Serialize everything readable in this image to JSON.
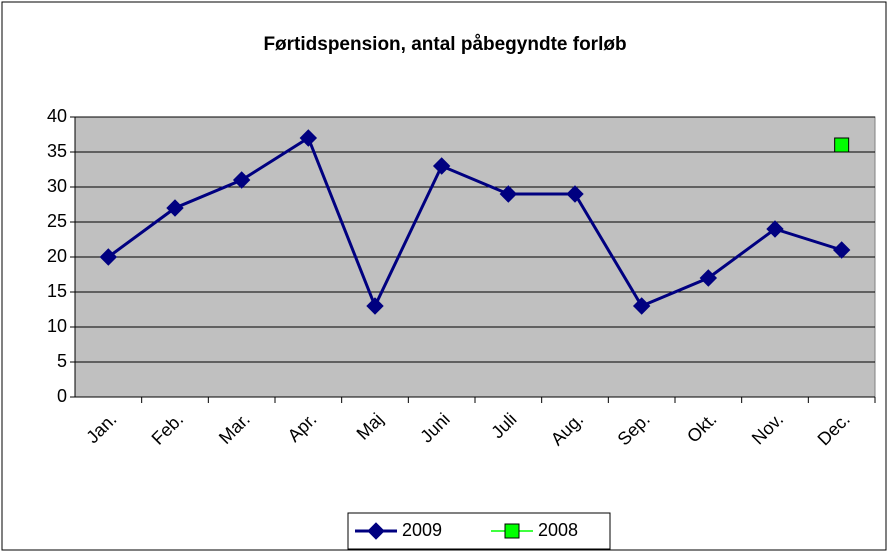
{
  "chart_data": {
    "type": "line",
    "title": "Førtidspension, antal påbegyndte forløb",
    "categories": [
      "Jan.",
      "Feb.",
      "Mar.",
      "Apr.",
      "Maj",
      "Juni",
      "Juli",
      "Aug.",
      "Sep.",
      "Okt.",
      "Nov.",
      "Dec."
    ],
    "series": [
      {
        "name": "2009",
        "color": "#000080",
        "marker": "diamond",
        "values": [
          20,
          27,
          31,
          37,
          13,
          33,
          29,
          29,
          13,
          17,
          24,
          21
        ]
      },
      {
        "name": "2008",
        "color": "#00ff00",
        "marker": "square",
        "values": [
          null,
          null,
          null,
          null,
          null,
          null,
          null,
          null,
          null,
          null,
          null,
          36
        ]
      }
    ],
    "ylim": [
      0,
      40
    ],
    "yticks": [
      0,
      5,
      10,
      15,
      20,
      25,
      30,
      35,
      40
    ],
    "grid": true,
    "legend": "bottom"
  }
}
